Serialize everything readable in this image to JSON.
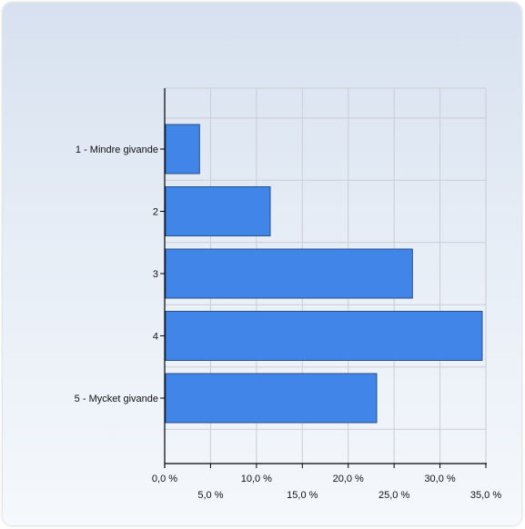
{
  "chart_data": {
    "type": "bar",
    "orientation": "horizontal",
    "categories": [
      "1 - Mindre givande",
      "2",
      "3",
      "4",
      "5 - Mycket givande"
    ],
    "values": [
      3.8,
      11.5,
      27.0,
      34.6,
      23.1
    ],
    "unit": "%",
    "xlim": [
      0,
      35
    ],
    "x_ticks": [
      {
        "value": 0,
        "label": "0,0 %"
      },
      {
        "value": 5,
        "label": "5,0 %"
      },
      {
        "value": 10,
        "label": "10,0 %"
      },
      {
        "value": 15,
        "label": "15,0 %"
      },
      {
        "value": 20,
        "label": "20,0 %"
      },
      {
        "value": 25,
        "label": "25,0 %"
      },
      {
        "value": 30,
        "label": "30,0 %"
      },
      {
        "value": 35,
        "label": "35,0 %"
      }
    ],
    "grid": true,
    "legend": "none",
    "colors": {
      "bar": "#4285e8",
      "bar_stroke": "#2a4f86",
      "grid": "#c9ced6",
      "axis": "#000000"
    }
  }
}
